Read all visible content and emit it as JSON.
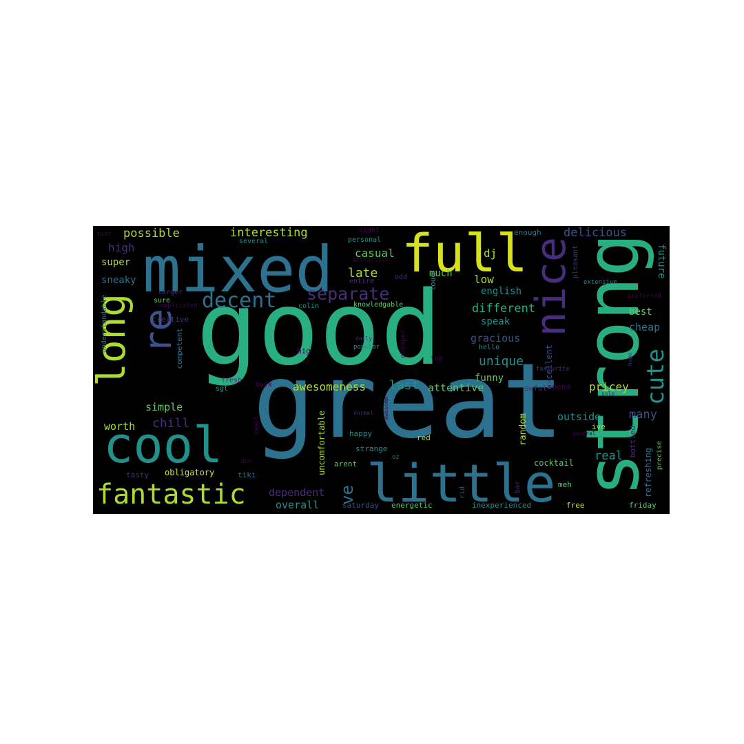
{
  "palette": {
    "y": "#d8e219",
    "yg": "#addc30",
    "g": "#5ec962",
    "tg": "#28ae80",
    "t": "#21918c",
    "b": "#2c728e",
    "i": "#3b528b",
    "p": "#472d7b",
    "dp": "#440154"
  },
  "words": [
    {
      "id": "good",
      "text": "good",
      "c": "tg"
    },
    {
      "id": "great",
      "text": "great",
      "c": "b"
    },
    {
      "id": "strong",
      "text": "strong",
      "c": "tg"
    },
    {
      "id": "mixed",
      "text": "mixed",
      "c": "b"
    },
    {
      "id": "full",
      "text": "full",
      "c": "y"
    },
    {
      "id": "nice",
      "text": "nice",
      "c": "p"
    },
    {
      "id": "little",
      "text": "little",
      "c": "b"
    },
    {
      "id": "cool",
      "text": "cool",
      "c": "t"
    },
    {
      "id": "long",
      "text": "long",
      "c": "yg"
    },
    {
      "id": "re",
      "text": "re",
      "c": "i"
    },
    {
      "id": "fantastic",
      "text": "fantastic",
      "c": "yg"
    },
    {
      "id": "decent",
      "text": "decent",
      "c": "b"
    },
    {
      "id": "separate",
      "text": "separate",
      "c": "p"
    },
    {
      "id": "cute",
      "text": "cute",
      "c": "t"
    },
    {
      "id": "interesting",
      "text": "interesting",
      "c": "yg"
    },
    {
      "id": "possible",
      "text": "possible",
      "c": "yg"
    },
    {
      "id": "delicious",
      "text": "delicious",
      "c": "i"
    },
    {
      "id": "ve",
      "text": "ve",
      "c": "b"
    },
    {
      "id": "unique",
      "text": "unique",
      "c": "t"
    },
    {
      "id": "different",
      "text": "different",
      "c": "tg"
    },
    {
      "id": "awesomeness",
      "text": "awesomeness",
      "c": "yg"
    },
    {
      "id": "last",
      "text": "last",
      "c": "t"
    },
    {
      "id": "late",
      "text": "late",
      "c": "yg"
    },
    {
      "id": "casual",
      "text": "casual",
      "c": "g"
    },
    {
      "id": "chill",
      "text": "chill",
      "c": "p"
    },
    {
      "id": "worth",
      "text": "worth",
      "c": "yg"
    },
    {
      "id": "simple",
      "text": "simple",
      "c": "g"
    },
    {
      "id": "overall",
      "text": "overall",
      "c": "t"
    },
    {
      "id": "dependent",
      "text": "dependent",
      "c": "p"
    },
    {
      "id": "attentive",
      "text": "attentive",
      "c": "g"
    },
    {
      "id": "pricey",
      "text": "pricey",
      "c": "yg"
    },
    {
      "id": "outside",
      "text": "outside",
      "c": "t"
    },
    {
      "id": "many",
      "text": "many",
      "c": "i"
    },
    {
      "id": "real",
      "text": "real",
      "c": "t"
    },
    {
      "id": "funny",
      "text": "funny",
      "c": "g"
    },
    {
      "id": "gracious",
      "text": "gracious",
      "c": "i"
    },
    {
      "id": "english",
      "text": "english",
      "c": "t"
    },
    {
      "id": "speak",
      "text": "speak",
      "c": "t"
    },
    {
      "id": "low",
      "text": "low",
      "c": "yg"
    },
    {
      "id": "much",
      "text": "much",
      "c": "g"
    },
    {
      "id": "high",
      "text": "high",
      "c": "p"
    },
    {
      "id": "super",
      "text": "super",
      "c": "yg"
    },
    {
      "id": "sneaky",
      "text": "sneaky",
      "c": "b"
    },
    {
      "id": "dj",
      "text": "dj",
      "c": "yg"
    },
    {
      "id": "best",
      "text": "best",
      "c": "g"
    },
    {
      "id": "cheap",
      "text": "cheap",
      "c": "b"
    },
    {
      "id": "future",
      "text": "future",
      "c": "t"
    },
    {
      "id": "excellent",
      "text": "excellent",
      "c": "i"
    },
    {
      "id": "refreshing",
      "text": "refreshing",
      "c": "b"
    },
    {
      "id": "random",
      "text": "random",
      "c": "yg"
    },
    {
      "id": "uncomfortable",
      "text": "uncomfortable",
      "c": "yg"
    },
    {
      "id": "happy",
      "text": "happy",
      "c": "t"
    },
    {
      "id": "strange",
      "text": "strange",
      "c": "t"
    },
    {
      "id": "arent",
      "text": "arent",
      "c": "g"
    },
    {
      "id": "obligatory",
      "text": "obligatory",
      "c": "y"
    },
    {
      "id": "tasty",
      "text": "tasty",
      "c": "p"
    },
    {
      "id": "tiki",
      "text": "tiki",
      "c": "b"
    },
    {
      "id": "cocktail",
      "text": "cocktail",
      "c": "g"
    },
    {
      "id": "red",
      "text": "red",
      "c": "yg"
    },
    {
      "id": "energetic",
      "text": "energetic",
      "c": "g"
    },
    {
      "id": "saturday",
      "text": "saturday",
      "c": "i"
    },
    {
      "id": "inexperienced",
      "text": "inexperienced",
      "c": "t"
    },
    {
      "id": "free",
      "text": "free",
      "c": "y"
    },
    {
      "id": "friday",
      "text": "friday",
      "c": "g"
    },
    {
      "id": "meh",
      "text": "meh",
      "c": "g"
    },
    {
      "id": "bottled",
      "text": "bottled",
      "c": "p"
    },
    {
      "id": "precise",
      "text": "precise",
      "c": "g"
    },
    {
      "id": "ive",
      "text": "ive",
      "c": "yg"
    },
    {
      "id": "awful",
      "text": "awful",
      "c": "p"
    },
    {
      "id": "spend",
      "text": "spend",
      "c": "dp"
    },
    {
      "id": "competent",
      "text": "competent",
      "c": "b"
    },
    {
      "id": "creative",
      "text": "creative",
      "c": "p"
    },
    {
      "id": "understandable",
      "text": "understandable",
      "c": "b"
    },
    {
      "id": "larger",
      "text": "larger",
      "c": "p"
    },
    {
      "id": "sure",
      "text": "sure",
      "c": "g"
    },
    {
      "id": "complicated",
      "text": "complicated",
      "c": "dp"
    },
    {
      "id": "colin",
      "text": "colin",
      "c": "t"
    },
    {
      "id": "knowledgable",
      "text": "knowledgable",
      "c": "g"
    },
    {
      "id": "loud",
      "text": "loud",
      "c": "t"
    },
    {
      "id": "entire",
      "text": "entire",
      "c": "p"
    },
    {
      "id": "odd",
      "text": "odd",
      "c": "p"
    },
    {
      "id": "personal",
      "text": "personal",
      "c": "t"
    },
    {
      "id": "several",
      "text": "several",
      "c": "t"
    },
    {
      "id": "sight",
      "text": "sight",
      "c": "dp"
    },
    {
      "id": "attractive",
      "text": "attractive",
      "c": "dp"
    },
    {
      "id": "enough",
      "text": "enough",
      "c": "b"
    },
    {
      "id": "pleasant",
      "text": "pleasant",
      "c": "p"
    },
    {
      "id": "extensive",
      "text": "extensive",
      "c": "t"
    },
    {
      "id": "preferred",
      "text": "preferred",
      "c": "dp"
    },
    {
      "id": "mint",
      "text": "mint",
      "c": "dp"
    },
    {
      "id": "fresh",
      "text": "fresh",
      "c": "p"
    },
    {
      "id": "big",
      "text": "big",
      "c": "dp"
    },
    {
      "id": "sgt",
      "text": "sgt",
      "c": "t"
    },
    {
      "id": "back",
      "text": "back",
      "c": "dp"
    },
    {
      "id": "daily",
      "text": "daily",
      "c": "p"
    },
    {
      "id": "popular",
      "text": "popular",
      "c": "t"
    },
    {
      "id": "cheaper",
      "text": "cheaper",
      "c": "dp"
    },
    {
      "id": "top",
      "text": "top",
      "c": "dp"
    },
    {
      "id": "hello",
      "text": "hello",
      "c": "t"
    },
    {
      "id": "favourite",
      "text": "favourite",
      "c": "p"
    },
    {
      "id": "huge",
      "text": "huge",
      "c": "p"
    },
    {
      "id": "small",
      "text": "small",
      "c": "dp"
    },
    {
      "id": "normal",
      "text": "normal",
      "c": "p"
    },
    {
      "id": "awesome",
      "text": "awesome",
      "c": "dp"
    },
    {
      "id": "don",
      "text": "don",
      "c": "dp"
    },
    {
      "id": "oz",
      "text": "oz",
      "c": "b"
    },
    {
      "id": "rid",
      "text": "rid",
      "c": "i"
    },
    {
      "id": "bar",
      "text": "bar",
      "c": "p"
    },
    {
      "id": "general",
      "text": "general",
      "c": "dp"
    },
    {
      "id": "sole",
      "text": "sole",
      "c": "p"
    }
  ]
}
